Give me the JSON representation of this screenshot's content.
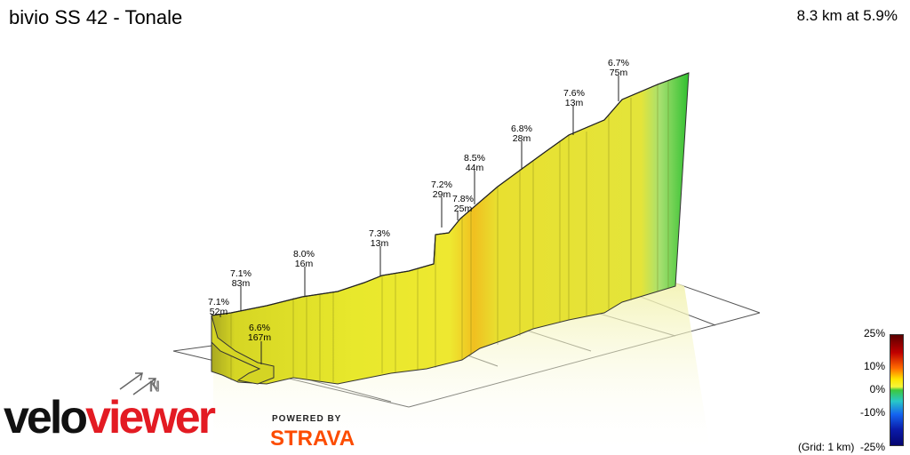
{
  "header": {
    "title": "bivio SS 42 - Tonale",
    "summary": "8.3 km at 5.9%"
  },
  "chart_data": {
    "type": "area",
    "title": "bivio SS 42 - Tonale",
    "subtitle": "8.3 km at 5.9%",
    "distance_km": 8.3,
    "avg_gradient_pct": 5.9,
    "segments": [
      {
        "gradient": "7.1%",
        "elevation": "52m",
        "pct": 7.1,
        "gain_m": 52
      },
      {
        "gradient": "7.1%",
        "elevation": "83m",
        "pct": 7.1,
        "gain_m": 83
      },
      {
        "gradient": "6.6%",
        "elevation": "167m",
        "pct": 6.6,
        "gain_m": 167
      },
      {
        "gradient": "8.0%",
        "elevation": "16m",
        "pct": 8.0,
        "gain_m": 16
      },
      {
        "gradient": "7.3%",
        "elevation": "13m",
        "pct": 7.3,
        "gain_m": 13
      },
      {
        "gradient": "7.2%",
        "elevation": "29m",
        "pct": 7.2,
        "gain_m": 29
      },
      {
        "gradient": "7.8%",
        "elevation": "25m",
        "pct": 7.8,
        "gain_m": 25
      },
      {
        "gradient": "8.5%",
        "elevation": "44m",
        "pct": 8.5,
        "gain_m": 44
      },
      {
        "gradient": "6.8%",
        "elevation": "28m",
        "pct": 6.8,
        "gain_m": 28
      },
      {
        "gradient": "7.6%",
        "elevation": "13m",
        "pct": 7.6,
        "gain_m": 13
      },
      {
        "gradient": "6.7%",
        "elevation": "75m",
        "pct": 6.7,
        "gain_m": 75
      }
    ],
    "colorbar": {
      "ticks": [
        "25%",
        "10%",
        "0%",
        "-10%",
        "-25%"
      ],
      "note": "(Grid: 1 km)"
    },
    "colors": {
      "climb": "#e6e62a",
      "steep": "#f0a020",
      "final": "#3cc83c"
    }
  },
  "branding": {
    "logo_left": "velo",
    "logo_right": "viewer",
    "powered_by": "POWERED BY",
    "strava": "STRAVA"
  }
}
